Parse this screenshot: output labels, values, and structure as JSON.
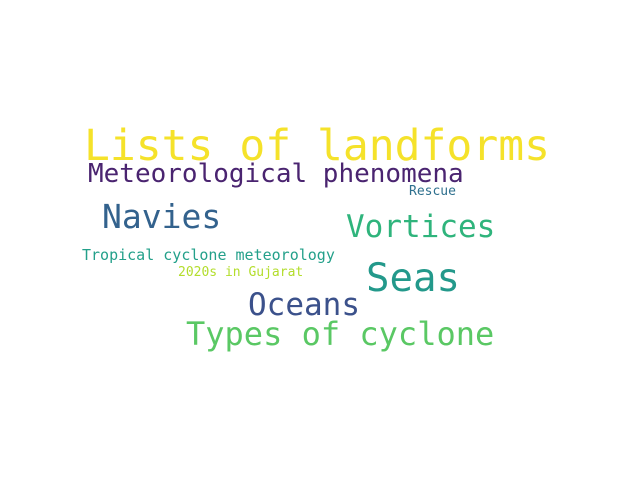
{
  "word_cloud": {
    "words": [
      {
        "id": "w1",
        "text": "Lists of landforms",
        "color": "#f5e22a"
      },
      {
        "id": "w2",
        "text": "Meteorological phenomena",
        "color": "#4a2470"
      },
      {
        "id": "w3",
        "text": "Rescue",
        "color": "#2f708e"
      },
      {
        "id": "w4",
        "text": "Navies",
        "color": "#33628d"
      },
      {
        "id": "w5",
        "text": "Vortices",
        "color": "#2fb47c"
      },
      {
        "id": "w6",
        "text": "Tropical cyclone meteorology",
        "color": "#23a08a"
      },
      {
        "id": "w7",
        "text": "Seas",
        "color": "#23998b"
      },
      {
        "id": "w8",
        "text": "2020s in Gujarat",
        "color": "#b3dd2c"
      },
      {
        "id": "w9",
        "text": "Oceans",
        "color": "#3b518b"
      },
      {
        "id": "w10",
        "text": "Types of cyclone",
        "color": "#5ac864"
      }
    ]
  }
}
